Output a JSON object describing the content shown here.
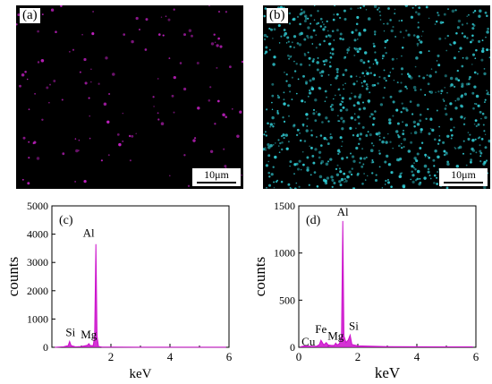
{
  "maps": [
    {
      "label": "(a)",
      "scale_label": "10μm",
      "dot_color": "#c020c0",
      "dot_count": 130
    },
    {
      "label": "(b)",
      "scale_label": "10μm",
      "dot_color": "#30c8d0",
      "dot_count": 900
    }
  ],
  "chart_data": [
    {
      "type": "line",
      "panel_label": "(c)",
      "xlabel": "keV",
      "ylabel": "counts",
      "xlim": [
        0,
        6
      ],
      "ylim": [
        0,
        5000
      ],
      "xticks": [
        "2",
        "4",
        "6"
      ],
      "yticks": [
        "0",
        "1000",
        "2000",
        "3000",
        "4000",
        "5000"
      ],
      "color": "#cc10cc",
      "series": [
        {
          "x": [
            0.1,
            0.4,
            0.55,
            0.6,
            0.65,
            0.8,
            1.0,
            1.2,
            1.25,
            1.3,
            1.4,
            1.45,
            1.49,
            1.53,
            1.58,
            1.7,
            2.0,
            3.0,
            4.0,
            5.0,
            5.9
          ],
          "y": [
            0,
            20,
            60,
            210,
            60,
            15,
            30,
            70,
            130,
            60,
            60,
            400,
            3650,
            400,
            30,
            10,
            5,
            3,
            2,
            2,
            2
          ]
        }
      ],
      "peaks": [
        {
          "label": "Si",
          "x": 0.6,
          "y": 210
        },
        {
          "label": "Mg",
          "x": 1.25,
          "y": 130
        },
        {
          "label": "Al",
          "x": 1.49,
          "y": 3650
        }
      ]
    },
    {
      "type": "line",
      "panel_label": "(d)",
      "xlabel": "keV",
      "ylabel": "counts",
      "xlim": [
        0,
        6
      ],
      "ylim": [
        0,
        1500
      ],
      "xticks": [
        "0",
        "2",
        "4",
        "6"
      ],
      "yticks": [
        "0",
        "500",
        "1000",
        "1500"
      ],
      "color": "#cc10cc",
      "series": [
        {
          "x": [
            0.05,
            0.2,
            0.4,
            0.6,
            0.7,
            0.75,
            0.85,
            0.93,
            1.0,
            1.1,
            1.2,
            1.25,
            1.3,
            1.38,
            1.45,
            1.49,
            1.53,
            1.6,
            1.68,
            1.74,
            1.8,
            2.0,
            3.0,
            4.0,
            5.0,
            5.9
          ],
          "y": [
            5,
            15,
            10,
            10,
            30,
            75,
            25,
            50,
            25,
            20,
            20,
            45,
            25,
            40,
            120,
            1340,
            120,
            50,
            80,
            130,
            30,
            15,
            8,
            6,
            5,
            5
          ]
        }
      ],
      "peaks": [
        {
          "label": "Cu",
          "x": 0.75,
          "y": 75
        },
        {
          "label": "Fe",
          "x": 0.75,
          "y": 75
        },
        {
          "label": "Mg",
          "x": 1.25,
          "y": 45
        },
        {
          "label": "Al",
          "x": 1.49,
          "y": 1340
        },
        {
          "label": "Si",
          "x": 1.74,
          "y": 130
        }
      ]
    }
  ]
}
